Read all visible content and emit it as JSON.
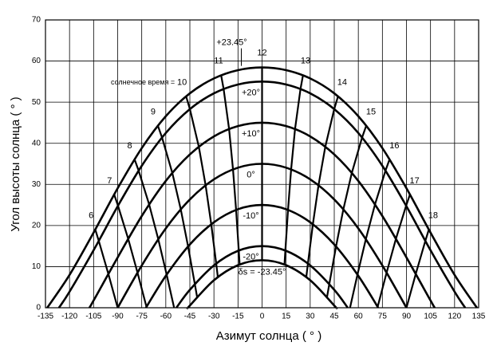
{
  "chart_data": {
    "type": "line",
    "xlabel": "Азимут солнца ( ° )",
    "ylabel": "Угол высоты солнца ( ° )",
    "xlim": [
      -135,
      135
    ],
    "xticks": [
      -135,
      -120,
      -105,
      -90,
      -75,
      -60,
      -45,
      -30,
      -15,
      0,
      15,
      30,
      45,
      60,
      75,
      90,
      105,
      120,
      135
    ],
    "ylim": [
      0,
      70
    ],
    "yticks": [
      0,
      10,
      20,
      30,
      40,
      50,
      60,
      70
    ],
    "grid": true,
    "color": "#000000",
    "series": [
      {
        "name": "+23.45°",
        "x": [
          -133.9,
          -120,
          -105,
          -90,
          -75,
          -60,
          -45,
          -30,
          -15,
          0,
          15,
          30,
          45,
          60,
          75,
          90,
          105,
          120,
          133.9
        ],
        "values": [
          0,
          7.98,
          18.28,
          29.06,
          38.82,
          46.58,
          52.15,
          55.77,
          57.79,
          58.45,
          57.79,
          55.77,
          52.15,
          46.58,
          38.82,
          29.06,
          18.28,
          7.98,
          0
        ]
      },
      {
        "name": "+20°",
        "x": [
          -126.6,
          -120,
          -105,
          -90,
          -75,
          -60,
          -45,
          -30,
          -15,
          0,
          15,
          30,
          45,
          60,
          75,
          90,
          105,
          120,
          126.6
        ],
        "values": [
          0,
          3.9,
          13.98,
          24.68,
          34.52,
          42.5,
          48.31,
          52.15,
          54.3,
          55,
          54.3,
          52.15,
          48.31,
          42.5,
          34.52,
          24.68,
          13.98,
          3.9,
          0
        ]
      },
      {
        "name": "+10°",
        "x": [
          -107.6,
          -105,
          -90,
          -75,
          -60,
          -45,
          -30,
          -15,
          0,
          15,
          30,
          45,
          60,
          75,
          90,
          105,
          107.6
        ],
        "values": [
          0,
          1.76,
          12.23,
          22.3,
          30.84,
          37.29,
          41.67,
          44.18,
          45,
          44.18,
          41.67,
          37.29,
          30.84,
          22.3,
          12.23,
          1.76,
          0
        ]
      },
      {
        "name": "0°",
        "x": [
          -90,
          -75,
          -60,
          -45,
          -30,
          -15,
          0,
          15,
          30,
          45,
          60,
          75,
          90
        ],
        "values": [
          0,
          10.27,
          19.3,
          26.34,
          31.23,
          34.07,
          35,
          34.07,
          31.23,
          26.34,
          19.3,
          10.27,
          0
        ]
      },
      {
        "name": "-10°",
        "x": [
          -72.4,
          -60,
          -45,
          -30,
          -15,
          0,
          15,
          30,
          45,
          60,
          72.4
        ],
        "values": [
          0,
          7.76,
          15.39,
          20.79,
          23.96,
          25,
          23.96,
          20.79,
          15.39,
          7.76,
          0
        ]
      },
      {
        "name": "-20°",
        "x": [
          -53.4,
          -45,
          -30,
          -15,
          0,
          15,
          30,
          45,
          53.4
        ],
        "values": [
          0,
          4.37,
          10.31,
          13.84,
          15,
          13.84,
          10.31,
          4.37,
          0
        ]
      },
      {
        "name": "δs = -23.45°",
        "x": [
          -46.1,
          -45,
          -30,
          -15,
          0,
          15,
          30,
          45,
          46.1
        ],
        "values": [
          0,
          0.53,
          6.69,
          10.35,
          11.55,
          10.35,
          6.69,
          0.53,
          0
        ]
      }
    ],
    "hour_lines": {
      "label": "солнечное время =",
      "lines": [
        {
          "name": "6",
          "x": [
            -103.96,
            -101.79,
            -95.77,
            -90
          ],
          "values": [
            19.03,
            16.27,
            8.18,
            0
          ]
        },
        {
          "name": "7",
          "x": [
            -92.17,
            -89.8,
            -83.44,
            -77.63,
            -71.89
          ],
          "values": [
            27.53,
            24.82,
            16.76,
            8.53,
            0
          ]
        },
        {
          "name": "8",
          "x": [
            -79.47,
            -76.94,
            -70.39,
            -64.69,
            -59.47,
            -54.82
          ],
          "values": [
            36.09,
            33.35,
            25.13,
            16.67,
            8.07,
            0
          ]
        },
        {
          "name": "9",
          "x": [
            -64.93,
            -62.35,
            -55.94,
            -50.67,
            -46.11,
            -41.91,
            -40.5
          ],
          "values": [
            44.27,
            41.4,
            32.79,
            23.93,
            14.9,
            5.79,
            2.64
          ]
        },
        {
          "name": "10",
          "x": [
            -47.35,
            -44.98,
            -39.41,
            -35.18,
            -31.67,
            -28.58,
            -27.56
          ],
          "values": [
            51.42,
            48.33,
            39.15,
            29.78,
            20.3,
            10.75,
            7.45
          ]
        },
        {
          "name": "11",
          "x": [
            -25.51,
            -23.96,
            -20.55,
            -18.11,
            -16.18,
            -14.51,
            -13.97
          ],
          "values": [
            56.54,
            53.21,
            43.46,
            33.64,
            23.79,
            13.91,
            10.5
          ]
        },
        {
          "name": "12",
          "x": [
            0,
            0,
            0,
            0,
            0,
            0,
            0
          ],
          "values": [
            58.45,
            55,
            45,
            35,
            25,
            15,
            11.55
          ]
        },
        {
          "name": "13",
          "x": [
            25.51,
            23.96,
            20.55,
            18.11,
            16.18,
            14.51,
            13.97
          ],
          "values": [
            56.54,
            53.21,
            43.46,
            33.64,
            23.79,
            13.91,
            10.5
          ]
        },
        {
          "name": "14",
          "x": [
            47.35,
            44.98,
            39.41,
            35.18,
            31.67,
            28.58,
            27.56
          ],
          "values": [
            51.42,
            48.33,
            39.15,
            29.78,
            20.3,
            10.75,
            7.45
          ]
        },
        {
          "name": "15",
          "x": [
            64.93,
            62.35,
            55.94,
            50.67,
            46.11,
            41.91,
            40.5
          ],
          "values": [
            44.27,
            41.4,
            32.79,
            23.93,
            14.9,
            5.79,
            2.64
          ]
        },
        {
          "name": "16",
          "x": [
            79.47,
            76.94,
            70.39,
            64.69,
            59.47,
            54.82
          ],
          "values": [
            36.09,
            33.35,
            25.13,
            16.67,
            8.07,
            0
          ]
        },
        {
          "name": "17",
          "x": [
            92.17,
            89.8,
            83.44,
            77.63,
            71.89
          ],
          "values": [
            27.53,
            24.82,
            16.76,
            8.53,
            0
          ]
        },
        {
          "name": "18",
          "x": [
            103.96,
            101.79,
            95.77,
            90
          ],
          "values": [
            19.03,
            16.27,
            8.18,
            0
          ]
        }
      ]
    }
  }
}
